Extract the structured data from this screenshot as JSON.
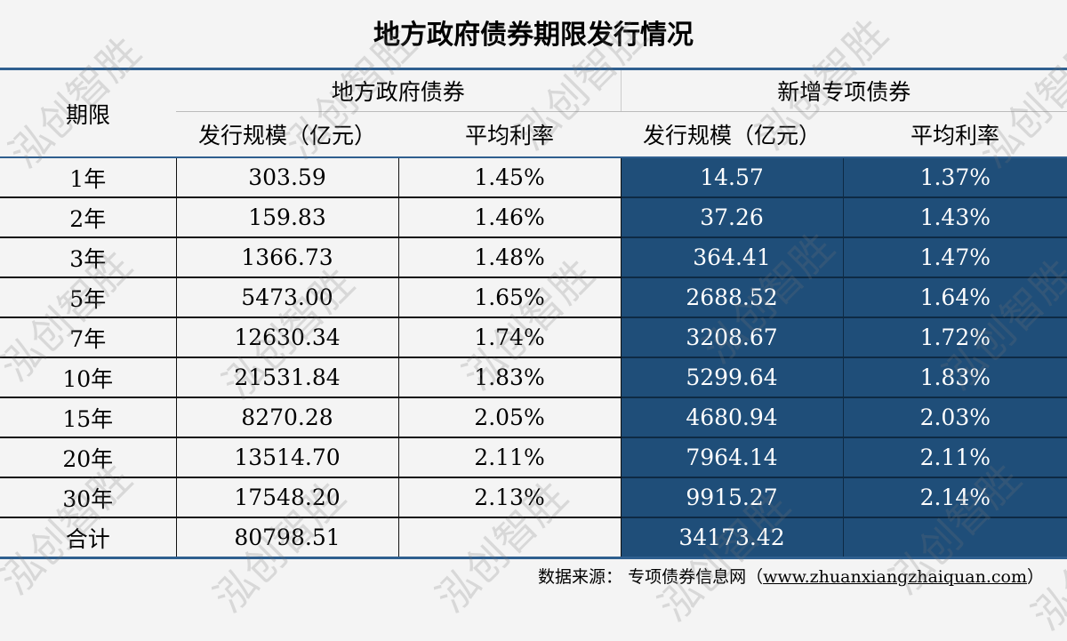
{
  "title": "地方政府债券期限发行情况",
  "watermark": "泓创智胜",
  "colors": {
    "accent_blue": "#1f4e79",
    "rule_blue": "#2f5f8f"
  },
  "header": {
    "term": "期限",
    "group1": "地方政府债券",
    "group2": "新增专项债券",
    "scale": "发行规模（亿元）",
    "rate": "平均利率"
  },
  "rows": [
    {
      "term": "1年",
      "lg_scale": "303.59",
      "lg_rate": "1.45%",
      "sp_scale": "14.57",
      "sp_rate": "1.37%"
    },
    {
      "term": "2年",
      "lg_scale": "159.83",
      "lg_rate": "1.46%",
      "sp_scale": "37.26",
      "sp_rate": "1.43%"
    },
    {
      "term": "3年",
      "lg_scale": "1366.73",
      "lg_rate": "1.48%",
      "sp_scale": "364.41",
      "sp_rate": "1.47%"
    },
    {
      "term": "5年",
      "lg_scale": "5473.00",
      "lg_rate": "1.65%",
      "sp_scale": "2688.52",
      "sp_rate": "1.64%"
    },
    {
      "term": "7年",
      "lg_scale": "12630.34",
      "lg_rate": "1.74%",
      "sp_scale": "3208.67",
      "sp_rate": "1.72%"
    },
    {
      "term": "10年",
      "lg_scale": "21531.84",
      "lg_rate": "1.83%",
      "sp_scale": "5299.64",
      "sp_rate": "1.83%"
    },
    {
      "term": "15年",
      "lg_scale": "8270.28",
      "lg_rate": "2.05%",
      "sp_scale": "4680.94",
      "sp_rate": "2.03%"
    },
    {
      "term": "20年",
      "lg_scale": "13514.70",
      "lg_rate": "2.11%",
      "sp_scale": "7964.14",
      "sp_rate": "2.11%"
    },
    {
      "term": "30年",
      "lg_scale": "17548.20",
      "lg_rate": "2.13%",
      "sp_scale": "9915.27",
      "sp_rate": "2.14%"
    },
    {
      "term": "合计",
      "lg_scale": "80798.51",
      "lg_rate": "",
      "sp_scale": "34173.42",
      "sp_rate": ""
    }
  ],
  "footer": {
    "label": "数据来源：",
    "source": "专项债券信息网（",
    "link": "www.zhuanxiangzhaiquan.com",
    "close": "）"
  }
}
